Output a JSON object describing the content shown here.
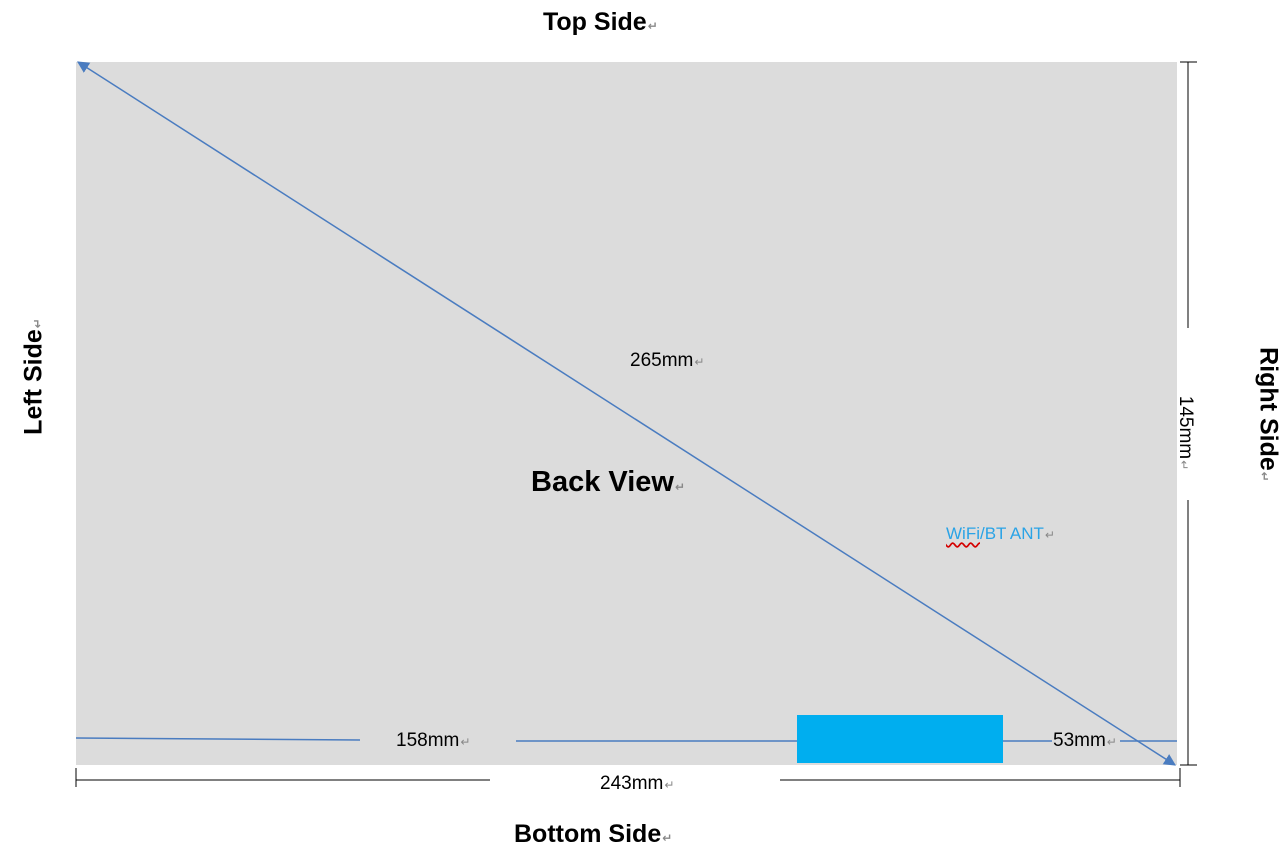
{
  "sides": {
    "top": "Top Side",
    "bottom": "Bottom Side",
    "left": "Left Side",
    "right": "Right Side"
  },
  "panel": {
    "title": "Back View",
    "color": "#dcdcdc"
  },
  "dimensions": {
    "diagonal": "265mm",
    "width_total": "243mm",
    "height": "145mm",
    "left_to_antenna": "158mm",
    "antenna_to_right": "53mm"
  },
  "antenna": {
    "label_part1": "WiFi",
    "label_part2": "/BT ANT",
    "color": "#00aeef",
    "label_color": "#2aa3e6"
  },
  "line_color": "#4a7cc0",
  "paragraph_mark": "↵"
}
